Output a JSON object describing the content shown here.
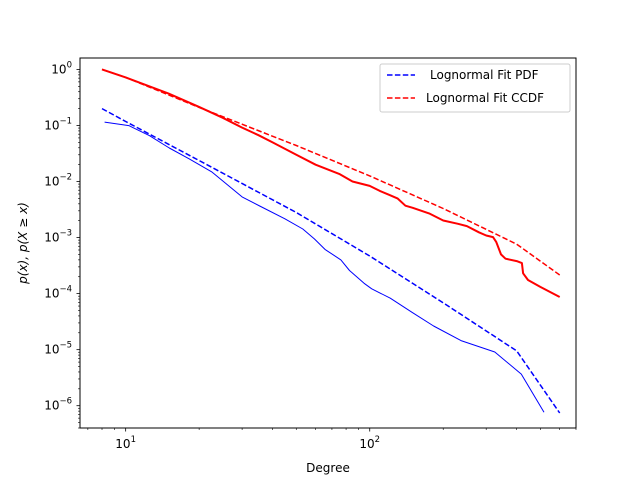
{
  "chart_data": {
    "type": "line",
    "title": "",
    "xlabel": "Degree",
    "ylabel": "p(x), p(X ≥ x)",
    "xscale": "log",
    "yscale": "log",
    "xlim": [
      6.5,
      700
    ],
    "ylim": [
      4e-07,
      1.6
    ],
    "grid": false,
    "legend_position": "top-right",
    "x_ticks": [
      {
        "value": 10,
        "base": "10",
        "exp": "1"
      },
      {
        "value": 100,
        "base": "10",
        "exp": "2"
      }
    ],
    "y_ticks": [
      {
        "value": 1,
        "base": "10",
        "exp": "0"
      },
      {
        "value": 0.1,
        "base": "10",
        "exp": "−1"
      },
      {
        "value": 0.01,
        "base": "10",
        "exp": "−2"
      },
      {
        "value": 0.001,
        "base": "10",
        "exp": "−3"
      },
      {
        "value": 0.0001,
        "base": "10",
        "exp": "−4"
      },
      {
        "value": 1e-05,
        "base": "10",
        "exp": "−5"
      },
      {
        "value": 1e-06,
        "base": "10",
        "exp": "−6"
      }
    ],
    "series": [
      {
        "name": "",
        "kind": "empirical-pdf",
        "color": "#0000ff",
        "dash": "solid",
        "width": 1,
        "x": [
          8.2,
          10.3,
          12.5,
          15.1,
          18.2,
          22.5,
          30,
          35.4,
          44.9,
          53.2,
          59.4,
          65.6,
          76.2,
          82.6,
          94.8,
          101.9,
          121.4,
          149.6,
          182.6,
          236.6,
          325.4,
          417.7,
          517.6
        ],
        "y": [
          0.115,
          0.0995,
          0.066,
          0.0397,
          0.0254,
          0.0149,
          0.00531,
          0.00366,
          0.00216,
          0.00142,
          0.000942,
          0.000614,
          0.000399,
          0.000258,
          0.000153,
          0.000122,
          8.29e-05,
          4.59e-05,
          2.64e-05,
          1.45e-05,
          9.07e-06,
          3.66e-06,
          7.63e-07
        ]
      },
      {
        "name": "",
        "kind": "empirical-ccdf",
        "color": "#ff0000",
        "dash": "solid",
        "width": 2,
        "x": [
          8,
          10,
          12.5,
          15,
          20,
          25,
          30,
          35,
          40,
          50,
          60,
          75,
          85,
          100,
          110,
          120,
          130,
          140,
          150,
          175,
          200,
          230,
          250,
          280,
          300,
          320,
          330,
          345,
          360,
          400,
          420,
          425,
          445,
          500,
          600
        ],
        "y": [
          1.0,
          0.72,
          0.5,
          0.37,
          0.215,
          0.137,
          0.0915,
          0.0672,
          0.05,
          0.03,
          0.02,
          0.0137,
          0.01,
          0.00834,
          0.0068,
          0.0058,
          0.005,
          0.0037,
          0.0034,
          0.0027,
          0.00202,
          0.00176,
          0.0016,
          0.00124,
          0.00109,
          0.00102,
          0.00083,
          0.0005,
          0.00042,
          0.00038,
          0.00035,
          0.00023,
          0.000175,
          0.000132,
          8.7e-05
        ]
      },
      {
        "name": "Lognormal Fit PDF",
        "kind": "fit-pdf",
        "color": "#0000ff",
        "dash": "dashed",
        "width": 1.5,
        "x": [
          8,
          10,
          20,
          50,
          100,
          200,
          400,
          600
        ],
        "y": [
          0.2,
          0.118,
          0.0237,
          0.0028,
          0.000468,
          6.86e-05,
          9.5e-06,
          7.4e-07
        ]
      },
      {
        "name": "Lognormal Fit CCDF",
        "kind": "fit-ccdf",
        "color": "#ff0000",
        "dash": "dashed",
        "width": 1.5,
        "x": [
          8,
          10,
          20,
          50,
          100,
          200,
          400,
          600
        ],
        "y": [
          1.0,
          0.72,
          0.21,
          0.044,
          0.0126,
          0.0033,
          0.00076,
          0.000215
        ]
      }
    ]
  }
}
